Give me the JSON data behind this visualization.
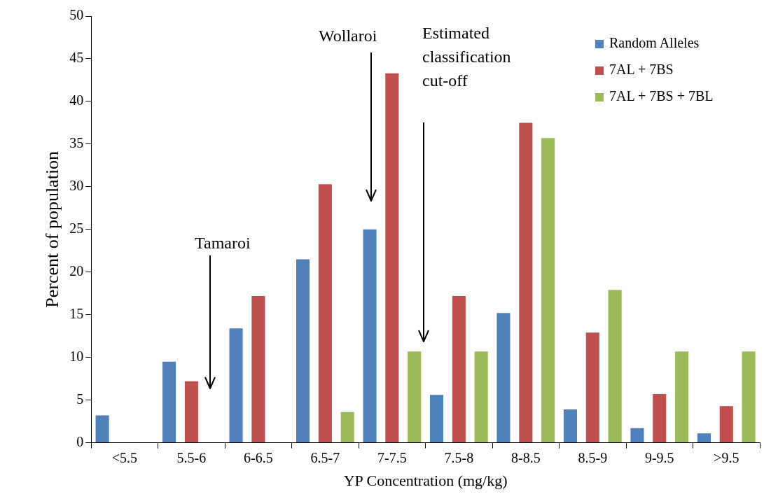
{
  "chart_data": {
    "type": "bar",
    "xlabel": "YP Concentration (mg/kg)",
    "ylabel": "Percent of population",
    "categories": [
      "<5.5",
      "5.5-6",
      "6-6.5",
      "6.5-7",
      "7-7.5",
      "7.5-8",
      "8-8.5",
      "8.5-9",
      "9-9.5",
      ">9.5"
    ],
    "series": [
      {
        "name": "Random Alleles",
        "color": "#4f81bd",
        "values": [
          3.2,
          9.5,
          13.4,
          21.5,
          25.0,
          5.6,
          15.2,
          3.9,
          1.7,
          1.1
        ]
      },
      {
        "name": "7AL + 7BS",
        "color": "#c0504d",
        "values": [
          0,
          7.2,
          17.2,
          30.3,
          43.3,
          17.2,
          37.5,
          12.9,
          5.7,
          4.3
        ]
      },
      {
        "name": "7AL + 7BS + 7BL",
        "color": "#9bbb59",
        "values": [
          0,
          0,
          0,
          3.6,
          10.7,
          10.7,
          35.7,
          17.9,
          10.7,
          10.7
        ]
      }
    ],
    "ylim": [
      0,
      50
    ],
    "yticks": [
      0,
      5,
      10,
      15,
      20,
      25,
      30,
      35,
      40,
      45,
      50
    ],
    "grid": false,
    "legend": "top right",
    "annotations": [
      "Tamaroi",
      "Wollaroi",
      "Estimated\nclassification\ncut-off"
    ]
  }
}
